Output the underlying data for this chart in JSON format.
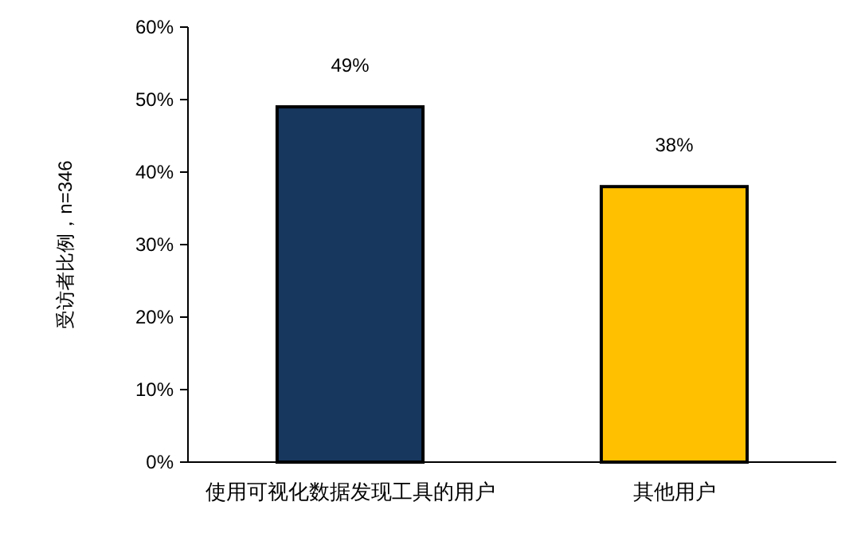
{
  "chart_data": {
    "type": "bar",
    "ylabel": "受访者比例，n=346",
    "categories": [
      "使用可视化数据发现工具的用户",
      "其他用户"
    ],
    "values": [
      49,
      38
    ],
    "colors": [
      "#17375e",
      "#ffc000"
    ],
    "value_labels": [
      "49%",
      "38%"
    ],
    "ylim": [
      0,
      60
    ],
    "yticks": [
      {
        "value": 0,
        "label": "0%"
      },
      {
        "value": 10,
        "label": "10%"
      },
      {
        "value": 20,
        "label": "20%"
      },
      {
        "value": 30,
        "label": "30%"
      },
      {
        "value": 40,
        "label": "40%"
      },
      {
        "value": 50,
        "label": "50%"
      },
      {
        "value": 60,
        "label": "60%"
      }
    ],
    "grid": false
  }
}
